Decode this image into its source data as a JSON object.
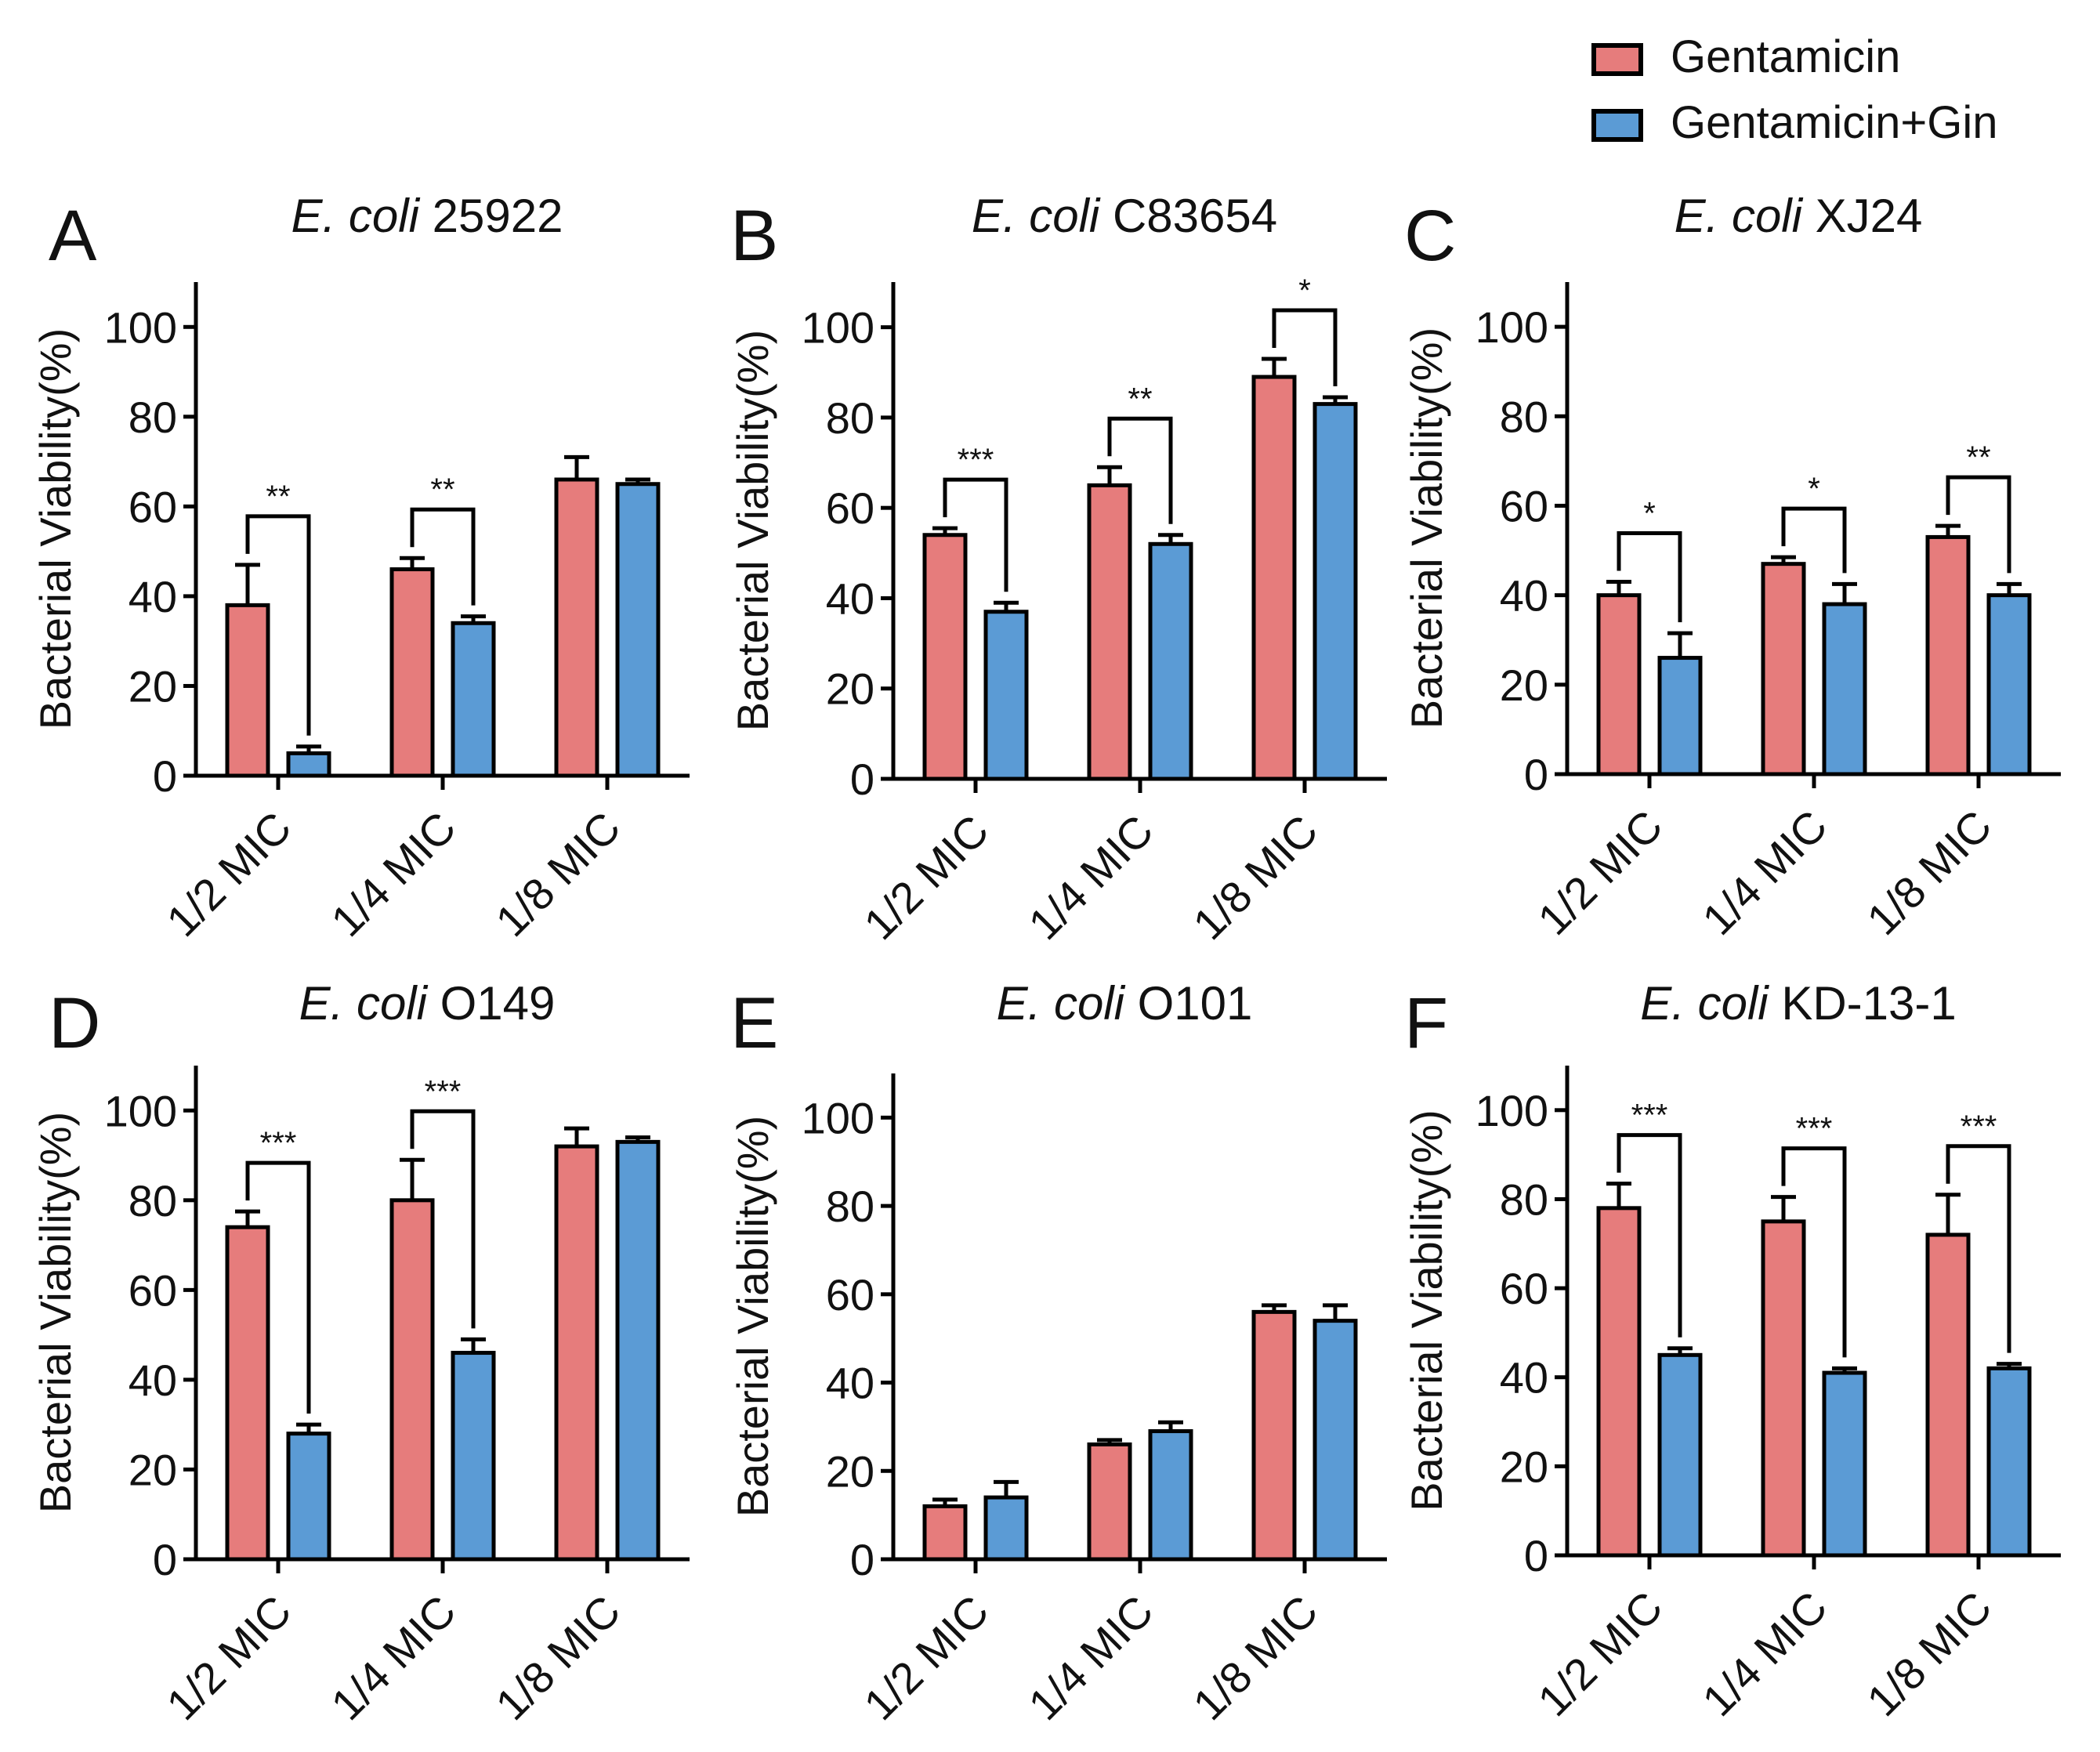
{
  "legend": {
    "position": "top-right",
    "entries": [
      {
        "name": "Gentamicin",
        "color": "#e67c7c"
      },
      {
        "name": "Gentamicin+Gin",
        "color": "#5b9bd5"
      }
    ]
  },
  "chart_data": [
    {
      "type": "bar",
      "panel": "A",
      "title_italic": "E. coli",
      "title_strain": "25922",
      "ylabel": "Bacterial Viability(%)",
      "ylim": [
        0,
        110
      ],
      "yticks": [
        "0",
        "20",
        "40",
        "60",
        "80",
        "100"
      ],
      "categories": [
        "1/2 MIC",
        "1/4 MIC",
        "1/8 MIC"
      ],
      "series": [
        {
          "name": "Gentamicin",
          "values": [
            38,
            46,
            66
          ],
          "errors": [
            9,
            2.5,
            5
          ]
        },
        {
          "name": "Gentamicin+Gin",
          "values": [
            5,
            34,
            65
          ],
          "errors": [
            1.5,
            1.5,
            1
          ]
        }
      ],
      "significance": [
        "**",
        "**",
        ""
      ]
    },
    {
      "type": "bar",
      "panel": "B",
      "title_italic": "E. coli",
      "title_strain": "C83654",
      "ylabel": "Bacterial Viability(%)",
      "ylim": [
        0,
        110
      ],
      "yticks": [
        "0",
        "20",
        "40",
        "60",
        "80",
        "100"
      ],
      "categories": [
        "1/2 MIC",
        "1/4 MIC",
        "1/8 MIC"
      ],
      "series": [
        {
          "name": "Gentamicin",
          "values": [
            54,
            65,
            89
          ],
          "errors": [
            1.5,
            4,
            4
          ]
        },
        {
          "name": "Gentamicin+Gin",
          "values": [
            37,
            52,
            83
          ],
          "errors": [
            2,
            2,
            1.5
          ]
        }
      ],
      "significance": [
        "***",
        "**",
        "*"
      ]
    },
    {
      "type": "bar",
      "panel": "C",
      "title_italic": "E. coli",
      "title_strain": "XJ24",
      "ylabel": "Bacterial Viability(%)",
      "ylim": [
        0,
        110
      ],
      "yticks": [
        "0",
        "20",
        "40",
        "60",
        "80",
        "100"
      ],
      "categories": [
        "1/2 MIC",
        "1/4 MIC",
        "1/8 MIC"
      ],
      "series": [
        {
          "name": "Gentamicin",
          "values": [
            40,
            47,
            53
          ],
          "errors": [
            3,
            1.5,
            2.5
          ]
        },
        {
          "name": "Gentamicin+Gin",
          "values": [
            26,
            38,
            40
          ],
          "errors": [
            5.5,
            4.5,
            2.5
          ]
        }
      ],
      "significance": [
        "*",
        "*",
        "**"
      ]
    },
    {
      "type": "bar",
      "panel": "D",
      "title_italic": "E. coli",
      "title_strain": "O149",
      "ylabel": "Bacterial Viability(%)",
      "ylim": [
        0,
        110
      ],
      "yticks": [
        "0",
        "20",
        "40",
        "60",
        "80",
        "100"
      ],
      "categories": [
        "1/2 MIC",
        "1/4 MIC",
        "1/8 MIC"
      ],
      "series": [
        {
          "name": "Gentamicin",
          "values": [
            74,
            80,
            92
          ],
          "errors": [
            3.5,
            9,
            4
          ]
        },
        {
          "name": "Gentamicin+Gin",
          "values": [
            28,
            46,
            93
          ],
          "errors": [
            2,
            3,
            1
          ]
        }
      ],
      "significance": [
        "***",
        "***",
        ""
      ]
    },
    {
      "type": "bar",
      "panel": "E",
      "title_italic": "E. coli",
      "title_strain": "O101",
      "ylabel": "Bacterial Viability(%)",
      "ylim": [
        0,
        110
      ],
      "yticks": [
        "0",
        "20",
        "40",
        "60",
        "80",
        "100"
      ],
      "categories": [
        "1/2 MIC",
        "1/4 MIC",
        "1/8 MIC"
      ],
      "series": [
        {
          "name": "Gentamicin",
          "values": [
            12,
            26,
            56
          ],
          "errors": [
            1.5,
            1,
            1.5
          ]
        },
        {
          "name": "Gentamicin+Gin",
          "values": [
            14,
            29,
            54
          ],
          "errors": [
            3.5,
            2,
            3.5
          ]
        }
      ],
      "significance": [
        "",
        "",
        ""
      ]
    },
    {
      "type": "bar",
      "panel": "F",
      "title_italic": "E. coli",
      "title_strain": "KD-13-1",
      "ylabel": "Bacterial Viability(%)",
      "ylim": [
        0,
        110
      ],
      "yticks": [
        "0",
        "20",
        "40",
        "60",
        "80",
        "100"
      ],
      "categories": [
        "1/2 MIC",
        "1/4 MIC",
        "1/8 MIC"
      ],
      "series": [
        {
          "name": "Gentamicin",
          "values": [
            78,
            75,
            72
          ],
          "errors": [
            5.5,
            5.5,
            9
          ]
        },
        {
          "name": "Gentamicin+Gin",
          "values": [
            45,
            41,
            42
          ],
          "errors": [
            1.5,
            1,
            1
          ]
        }
      ],
      "significance": [
        "***",
        "***",
        "***"
      ]
    }
  ]
}
